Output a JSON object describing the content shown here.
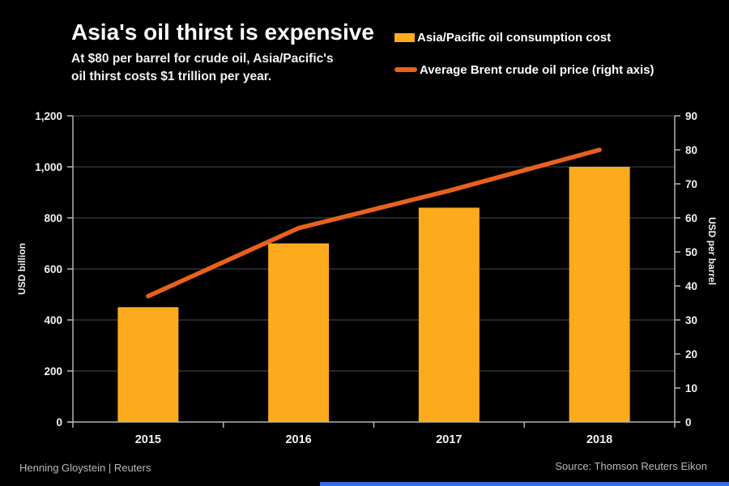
{
  "header": {
    "title": "Asia's oil thirst is expensive",
    "subtitle_line1": "At $80 per barrel for crude oil, Asia/Pacific's",
    "subtitle_line2": "oil thirst costs $1 trillion per year."
  },
  "legend": {
    "items": [
      {
        "label": "Asia/Pacific oil consumption cost",
        "marker": "bar-swatch",
        "color": "#FBAB1C"
      },
      {
        "label": "Average Brent crude oil price (right axis)",
        "marker": "line-swatch",
        "color": "#E9611D"
      }
    ]
  },
  "chart_data": {
    "type": "bar+line",
    "title": "Asia's oil thirst is expensive",
    "categories": [
      "2015",
      "2016",
      "2017",
      "2018"
    ],
    "series": [
      {
        "name": "Asia/Pacific oil consumption cost",
        "type": "bar",
        "axis": "left",
        "color": "#FBAB1C",
        "values": [
          450,
          700,
          840,
          1000
        ]
      },
      {
        "name": "Average Brent crude oil price (right axis)",
        "type": "line",
        "axis": "right",
        "color": "#E9611D",
        "values": [
          37,
          57,
          68,
          80
        ]
      }
    ],
    "left_axis": {
      "label": "USD billion",
      "min": 0,
      "max": 1200,
      "ticks": [
        {
          "value": 0,
          "label": "0"
        },
        {
          "value": 200,
          "label": "200"
        },
        {
          "value": 400,
          "label": "400"
        },
        {
          "value": 600,
          "label": "600"
        },
        {
          "value": 800,
          "label": "800"
        },
        {
          "value": 1000,
          "label": "1,000"
        },
        {
          "value": 1200,
          "label": "1,200"
        }
      ]
    },
    "right_axis": {
      "label": "USD per barrel",
      "min": 0,
      "max": 90,
      "ticks": [
        {
          "value": 0,
          "label": "0"
        },
        {
          "value": 10,
          "label": "10"
        },
        {
          "value": 20,
          "label": "20"
        },
        {
          "value": 30,
          "label": "30"
        },
        {
          "value": 40,
          "label": "40"
        },
        {
          "value": 50,
          "label": "50"
        },
        {
          "value": 60,
          "label": "60"
        },
        {
          "value": 70,
          "label": "70"
        },
        {
          "value": 80,
          "label": "80"
        },
        {
          "value": 90,
          "label": "90"
        }
      ]
    },
    "grid": "horizontal-at-left-ticks",
    "legend_position": "top-right"
  },
  "footer": {
    "credit": "Henning Gloystein | Reuters",
    "source": "Source: Thomson Reuters Eikon"
  },
  "colors": {
    "background": "#000000",
    "bar": "#FBAB1C",
    "line": "#E9611D",
    "grid": "#3E3E3E",
    "axis": "#B3B3B3",
    "tick_text": "#F2F2F2",
    "progress": "#2F6FD8"
  }
}
